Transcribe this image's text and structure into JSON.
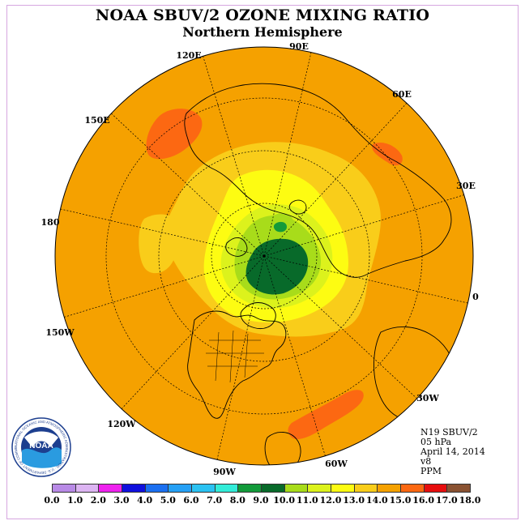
{
  "title": "NOAA SBUV/2 OZONE MIXING RATIO",
  "subtitle": "Northern Hemisphere",
  "longitude_labels": [
    "90E",
    "60E",
    "30E",
    "0",
    "30W",
    "60W",
    "90W",
    "120W",
    "150W",
    "180",
    "150E",
    "120E"
  ],
  "info": {
    "satellite": "N19 SBUV/2",
    "level": "05 hPa",
    "date": "April 14, 2014",
    "version": "v8",
    "units": "PPM"
  },
  "logo": {
    "text": "NOAA",
    "ring_text": "NATIONAL OCEANIC AND ATMOSPHERIC ADMINISTRATION · U.S. DEPARTMENT OF COMMERCE"
  },
  "colorbar": {
    "ticks": [
      "0.0",
      "1.0",
      "2.0",
      "3.0",
      "4.0",
      "5.0",
      "6.0",
      "7.0",
      "8.0",
      "9.0",
      "10.0",
      "11.0",
      "12.0",
      "13.0",
      "14.0",
      "15.0",
      "16.0",
      "17.0",
      "18.0"
    ],
    "colors": [
      "#b88ae6",
      "#dcb4f2",
      "#ee22ee",
      "#1010dd",
      "#1b6ff0",
      "#25a0f5",
      "#2bc2f2",
      "#33ecd8",
      "#129a3a",
      "#086a2a",
      "#a8dc1a",
      "#dcf21c",
      "#fdfc12",
      "#f9cd1a",
      "#f5a100",
      "#fc6812",
      "#e60e0e",
      "#8a5232"
    ]
  },
  "colors": {
    "background_ozone": "#f5a100",
    "border": "#d6a6e0",
    "coastline": "#000000"
  }
}
